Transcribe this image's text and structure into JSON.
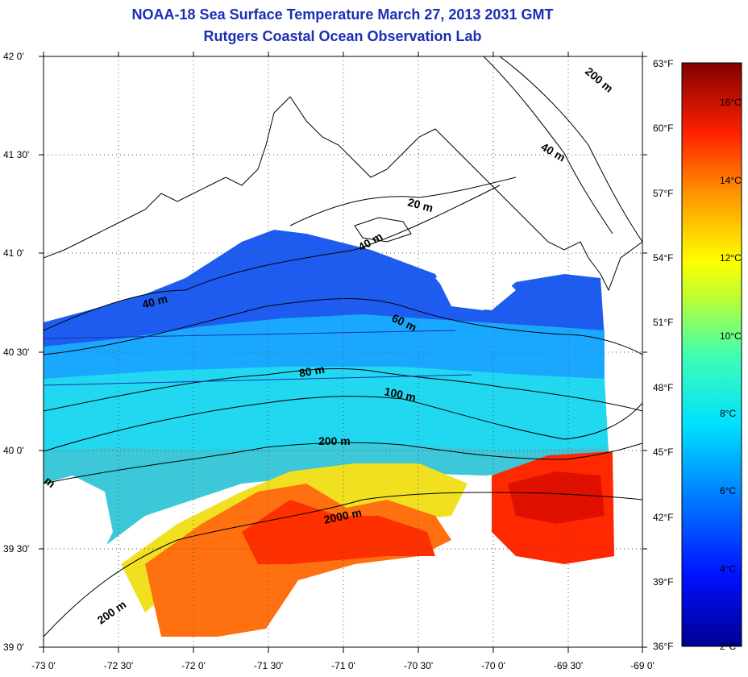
{
  "header": {
    "title": "NOAA-18 Sea Surface Temperature March 27, 2013 2031 GMT",
    "subtitle": "Rutgers Coastal Ocean Observation Lab"
  },
  "axes": {
    "lat_ticks": [
      "42 0'",
      "41 30'",
      "41 0'",
      "40 30'",
      "40 0'",
      "39 30'",
      "39 0'"
    ],
    "lon_ticks": [
      "-73 0'",
      "-72 30'",
      "-72 0'",
      "-71 30'",
      "-71 0'",
      "-70 30'",
      "-70 0'",
      "-69 30'",
      "-69 0'"
    ]
  },
  "colorbar": {
    "fahrenheit": [
      "63°F",
      "60°F",
      "57°F",
      "54°F",
      "51°F",
      "48°F",
      "45°F",
      "42°F",
      "39°F",
      "36°F"
    ],
    "celsius": [
      "16°C",
      "14°C",
      "12°C",
      "10°C",
      "8°C",
      "6°C",
      "4°C",
      "2°C"
    ]
  },
  "contours": {
    "labels": [
      "200 m",
      "40 m",
      "20 m",
      "40 m",
      "40 m",
      "60 m",
      "80 m",
      "100 m",
      "200 m",
      "2000 m",
      "200 m",
      "m"
    ]
  },
  "colors": {
    "title": "#1a2fb4"
  }
}
